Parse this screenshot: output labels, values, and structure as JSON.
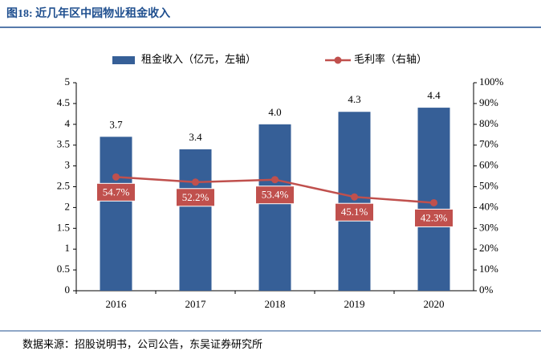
{
  "chart_data": {
    "type": "bar",
    "title": "图18:  近几年区中园物业租金收入",
    "source": "数据来源：招股说明书，公司公告，东吴证券研究所",
    "categories": [
      "2016",
      "2017",
      "2018",
      "2019",
      "2020"
    ],
    "series": [
      {
        "name": "租金收入（亿元，左轴）",
        "type": "bar",
        "color": "#365f97",
        "values": [
          3.7,
          3.4,
          4.0,
          4.3,
          4.4
        ],
        "value_labels": [
          "3.7",
          "3.4",
          "4.0",
          "4.3",
          "4.4"
        ]
      },
      {
        "name": "毛利率（右轴）",
        "type": "line",
        "axis": "y2",
        "color": "#c0504d",
        "values": [
          54.7,
          52.2,
          53.4,
          45.1,
          42.3
        ],
        "value_labels": [
          "54.7%",
          "52.2%",
          "53.4%",
          "45.1%",
          "42.3%"
        ]
      }
    ],
    "ylim": [
      0,
      5
    ],
    "yticks": [
      0,
      0.5,
      1,
      1.5,
      2,
      2.5,
      3,
      3.5,
      4,
      4.5,
      5
    ],
    "y2lim": [
      0,
      100
    ],
    "y2ticks": [
      {
        "value": 0,
        "label": "0%"
      },
      {
        "value": 10,
        "label": "10%"
      },
      {
        "value": 20,
        "label": "20%"
      },
      {
        "value": 30,
        "label": "30%"
      },
      {
        "value": 40,
        "label": "40%"
      },
      {
        "value": 50,
        "label": "50%"
      },
      {
        "value": 60,
        "label": "60%"
      },
      {
        "value": 70,
        "label": "70%"
      },
      {
        "value": 80,
        "label": "80%"
      },
      {
        "value": 90,
        "label": "90%"
      },
      {
        "value": 100,
        "label": "100%"
      }
    ],
    "grid": false,
    "legend": "top"
  }
}
